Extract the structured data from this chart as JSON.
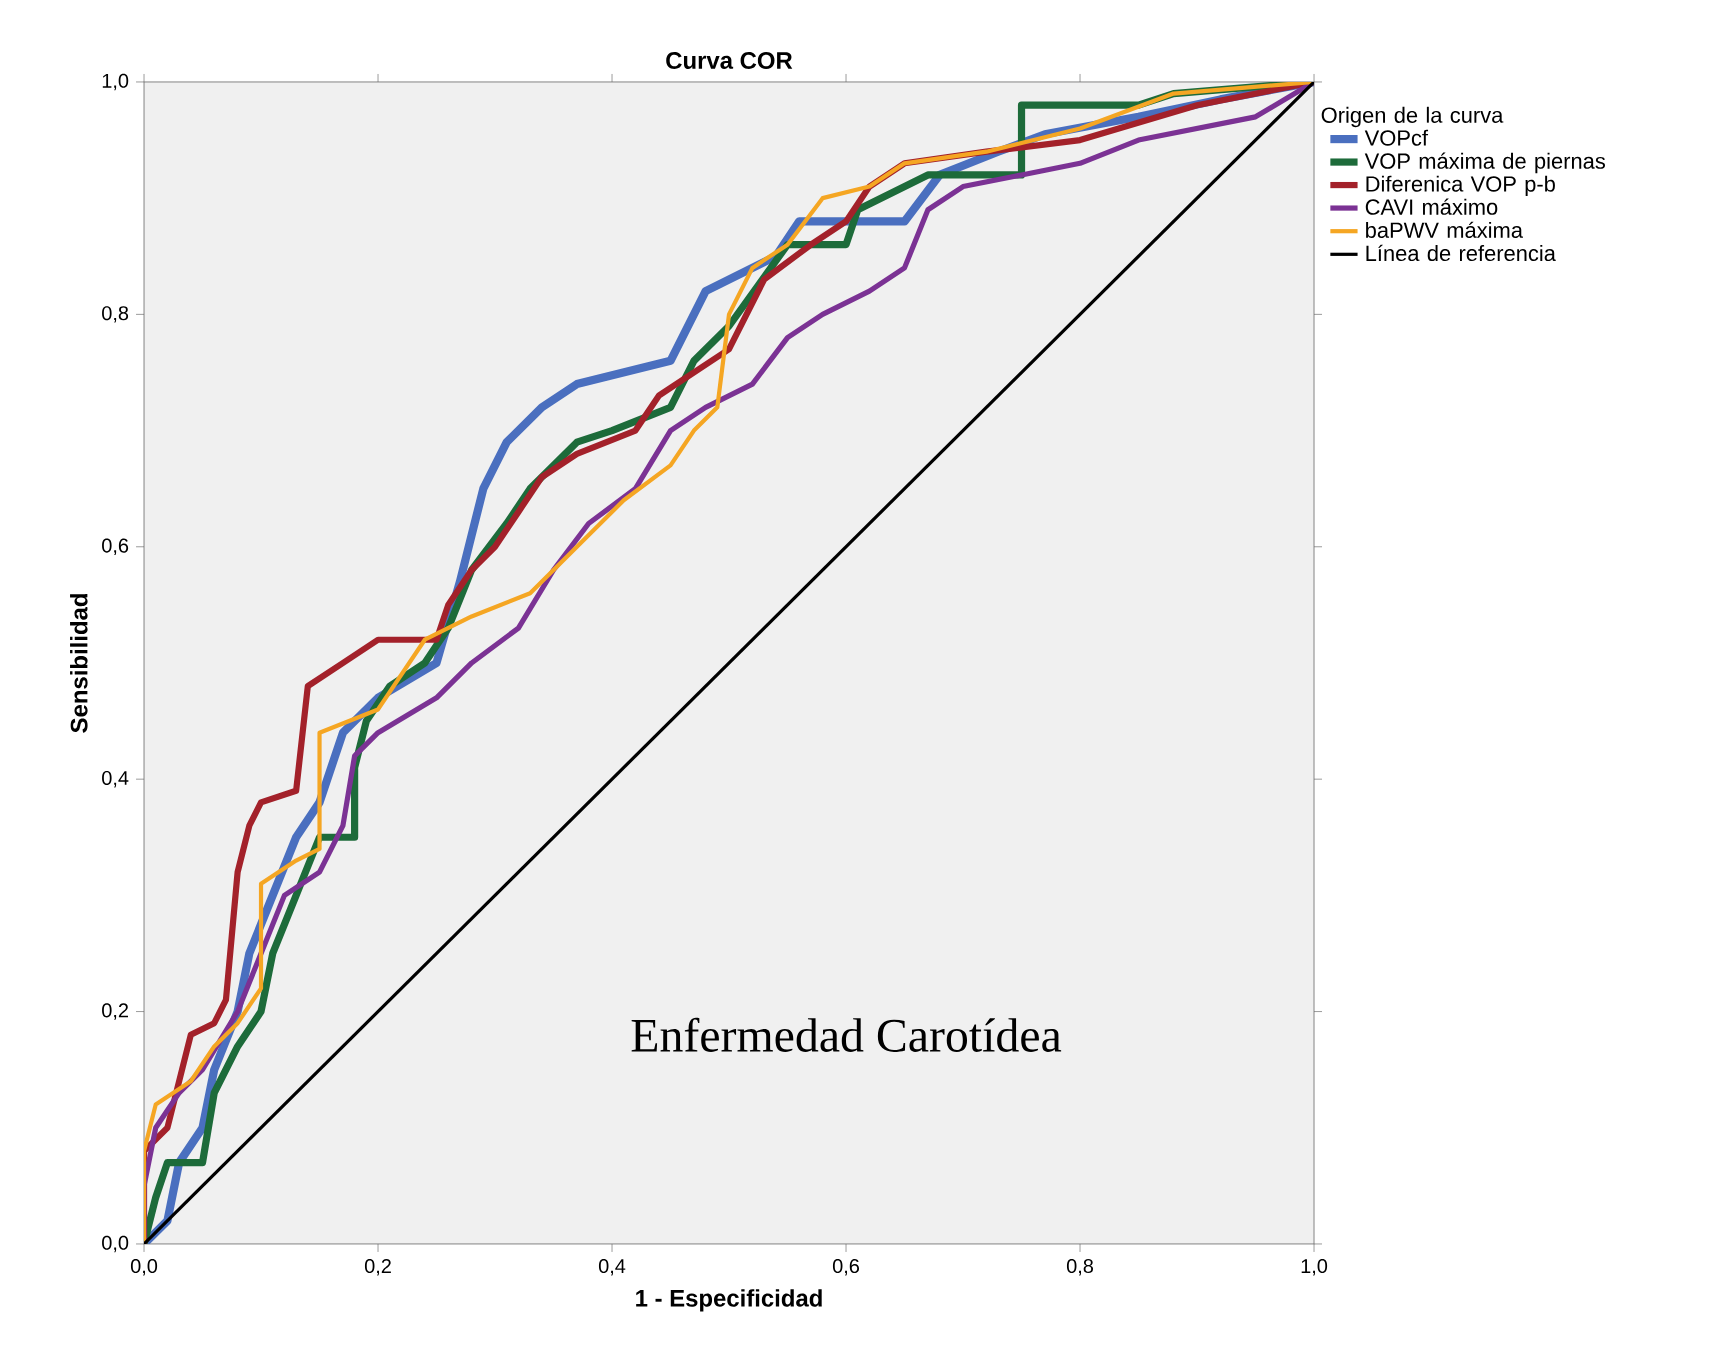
{
  "chart_data": {
    "type": "line",
    "title": "Curva COR",
    "xlabel": "1 - Especificidad",
    "ylabel": "Sensibilidad",
    "legend_title": "Origen de la curva",
    "xlim": [
      0,
      1
    ],
    "ylim": [
      0,
      1
    ],
    "xticks": [
      {
        "value": 0,
        "label": "0,0"
      },
      {
        "value": 0.2,
        "label": "0,2"
      },
      {
        "value": 0.4,
        "label": "0,4"
      },
      {
        "value": 0.6,
        "label": "0,6"
      },
      {
        "value": 0.8,
        "label": "0,8"
      },
      {
        "value": 1,
        "label": "1,0"
      }
    ],
    "yticks": [
      {
        "value": 0,
        "label": "0,0"
      },
      {
        "value": 0.2,
        "label": "0,2"
      },
      {
        "value": 0.4,
        "label": "0,4"
      },
      {
        "value": 0.6,
        "label": "0,6"
      },
      {
        "value": 0.8,
        "label": "0,8"
      },
      {
        "value": 1,
        "label": "1,0"
      }
    ],
    "grid": false,
    "legend": "right",
    "marker": "none",
    "line_style": "solid",
    "annotations": [
      "Enfermedad Carotídea"
    ],
    "series": [
      {
        "name": "VOPcf",
        "color": "#4a6fbf",
        "x": [
          0,
          0.02,
          0.03,
          0.05,
          0.06,
          0.08,
          0.09,
          0.11,
          0.13,
          0.15,
          0.17,
          0.2,
          0.25,
          0.27,
          0.29,
          0.31,
          0.34,
          0.37,
          0.45,
          0.48,
          0.54,
          0.56,
          0.65,
          0.68,
          0.73,
          0.77,
          0.85,
          0.92,
          1
        ],
        "values": [
          0,
          0.02,
          0.07,
          0.1,
          0.15,
          0.2,
          0.25,
          0.3,
          0.35,
          0.38,
          0.44,
          0.47,
          0.5,
          0.57,
          0.65,
          0.69,
          0.72,
          0.74,
          0.76,
          0.82,
          0.85,
          0.88,
          0.88,
          0.92,
          0.94,
          0.955,
          0.97,
          0.985,
          1
        ]
      },
      {
        "name": "VOP máxima de piernas",
        "color": "#1d6b3a",
        "x": [
          0,
          0.01,
          0.02,
          0.05,
          0.06,
          0.08,
          0.1,
          0.11,
          0.13,
          0.15,
          0.18,
          0.18,
          0.19,
          0.21,
          0.24,
          0.26,
          0.28,
          0.31,
          0.33,
          0.37,
          0.4,
          0.45,
          0.47,
          0.5,
          0.55,
          0.6,
          0.61,
          0.67,
          0.75,
          0.75,
          0.85,
          0.88,
          1
        ],
        "values": [
          0,
          0.04,
          0.07,
          0.07,
          0.13,
          0.17,
          0.2,
          0.25,
          0.3,
          0.35,
          0.35,
          0.41,
          0.45,
          0.48,
          0.5,
          0.53,
          0.58,
          0.62,
          0.65,
          0.69,
          0.7,
          0.72,
          0.76,
          0.79,
          0.86,
          0.86,
          0.89,
          0.92,
          0.92,
          0.98,
          0.98,
          0.99,
          1
        ]
      },
      {
        "name": "Diferenica VOP p-b",
        "color": "#a3212a",
        "x": [
          0,
          0,
          0.02,
          0.03,
          0.04,
          0.06,
          0.07,
          0.08,
          0.09,
          0.1,
          0.13,
          0.14,
          0.17,
          0.2,
          0.25,
          0.26,
          0.28,
          0.3,
          0.32,
          0.34,
          0.37,
          0.42,
          0.44,
          0.47,
          0.5,
          0.53,
          0.57,
          0.6,
          0.62,
          0.65,
          0.72,
          0.8,
          0.9,
          1
        ],
        "values": [
          0,
          0.08,
          0.1,
          0.14,
          0.18,
          0.19,
          0.21,
          0.32,
          0.36,
          0.38,
          0.39,
          0.48,
          0.5,
          0.52,
          0.52,
          0.55,
          0.58,
          0.6,
          0.63,
          0.66,
          0.68,
          0.7,
          0.73,
          0.75,
          0.77,
          0.83,
          0.86,
          0.88,
          0.91,
          0.93,
          0.94,
          0.95,
          0.98,
          1
        ]
      },
      {
        "name": "CAVI máximo",
        "color": "#7b3294",
        "x": [
          0,
          0,
          0.01,
          0.03,
          0.05,
          0.08,
          0.1,
          0.12,
          0.15,
          0.17,
          0.18,
          0.2,
          0.25,
          0.28,
          0.32,
          0.35,
          0.38,
          0.42,
          0.45,
          0.48,
          0.52,
          0.55,
          0.58,
          0.62,
          0.65,
          0.67,
          0.7,
          0.75,
          0.8,
          0.85,
          0.95,
          1
        ],
        "values": [
          0,
          0.05,
          0.1,
          0.13,
          0.15,
          0.2,
          0.25,
          0.3,
          0.32,
          0.36,
          0.42,
          0.44,
          0.47,
          0.5,
          0.53,
          0.58,
          0.62,
          0.65,
          0.7,
          0.72,
          0.74,
          0.78,
          0.8,
          0.82,
          0.84,
          0.89,
          0.91,
          0.92,
          0.93,
          0.95,
          0.97,
          1
        ]
      },
      {
        "name": "baPWV máxima",
        "color": "#f5a623",
        "x": [
          0,
          0,
          0.01,
          0.04,
          0.06,
          0.08,
          0.1,
          0.1,
          0.13,
          0.15,
          0.15,
          0.2,
          0.22,
          0.24,
          0.28,
          0.33,
          0.37,
          0.41,
          0.45,
          0.47,
          0.49,
          0.5,
          0.52,
          0.55,
          0.58,
          0.62,
          0.65,
          0.72,
          0.8,
          0.88,
          1
        ],
        "values": [
          0,
          0.08,
          0.12,
          0.14,
          0.17,
          0.19,
          0.22,
          0.31,
          0.33,
          0.34,
          0.44,
          0.46,
          0.49,
          0.52,
          0.54,
          0.56,
          0.6,
          0.64,
          0.67,
          0.7,
          0.72,
          0.8,
          0.84,
          0.86,
          0.9,
          0.91,
          0.93,
          0.94,
          0.96,
          0.99,
          1
        ]
      },
      {
        "name": "Línea de referencia",
        "color": "#000000",
        "x": [
          0,
          1
        ],
        "values": [
          0,
          1
        ]
      }
    ]
  }
}
